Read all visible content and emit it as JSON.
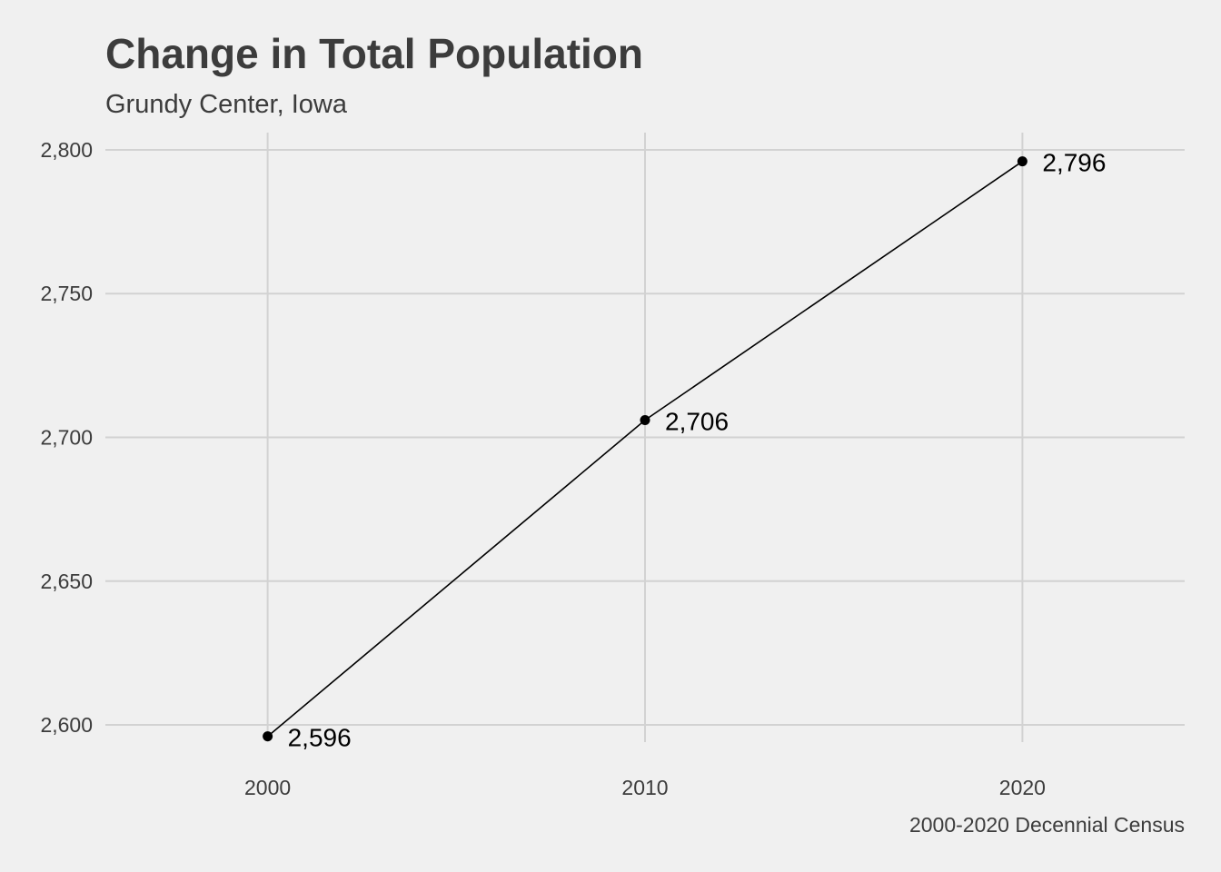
{
  "chart_data": {
    "type": "line",
    "title": "Change in Total Population",
    "subtitle": "Grundy Center, Iowa",
    "caption": "2000-2020 Decennial Census",
    "x": [
      2000,
      2010,
      2020
    ],
    "x_tick_labels": [
      "2000",
      "2010",
      "2020"
    ],
    "series": [
      {
        "values": [
          2596,
          2706,
          2796
        ],
        "labels": [
          "2,596",
          "2,706",
          "2,796"
        ]
      }
    ],
    "xlim": [
      1995.7,
      2024.3
    ],
    "ylim": [
      2594,
      2806
    ],
    "y_ticks": [
      2600,
      2650,
      2700,
      2750,
      2800
    ],
    "y_tick_labels": [
      "2,600",
      "2,650",
      "2,700",
      "2,750",
      "2,800"
    ],
    "grid": true,
    "legend": "none",
    "colors": {
      "background": "#f0f0f0",
      "grid": "#d2d2d2",
      "line": "#000000",
      "text": "#3c3c3c"
    }
  }
}
